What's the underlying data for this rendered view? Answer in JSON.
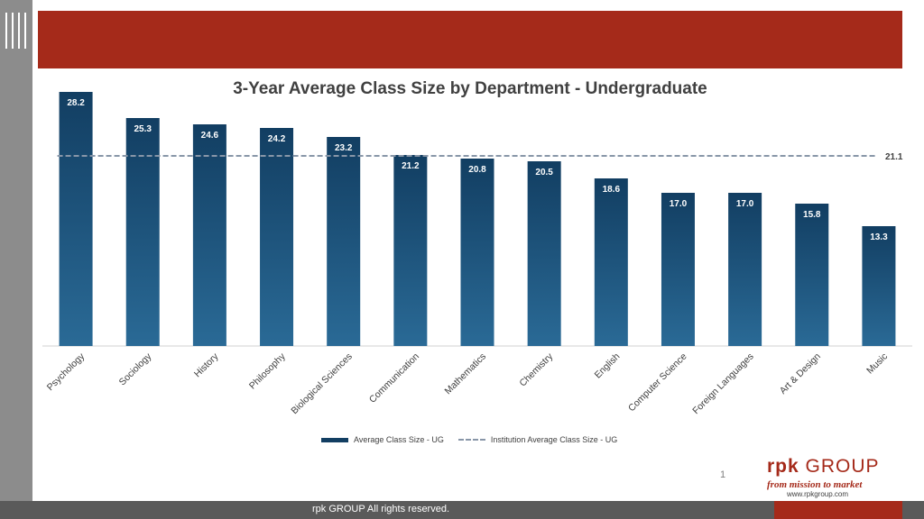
{
  "chart_data": {
    "type": "bar",
    "title": "3-Year Average Class Size by Department - Undergraduate",
    "categories": [
      "Psychology",
      "Sociology",
      "History",
      "Philosophy",
      "Biological Sciences",
      "Communication",
      "Mathematics",
      "Chemistry",
      "English",
      "Computer Science",
      "Foreign Languages",
      "Art & Design",
      "Music"
    ],
    "series": [
      {
        "name": "Average Class Size - UG",
        "values": [
          28.2,
          25.3,
          24.6,
          24.2,
          23.2,
          21.2,
          20.8,
          20.5,
          18.6,
          17.0,
          17.0,
          15.8,
          13.3
        ],
        "color": "#123e62"
      }
    ],
    "reference_line": {
      "name": "Institution Average Class Size - UG",
      "value": 21.1,
      "label": "21.1",
      "color": "#8896a8",
      "style": "dashed"
    },
    "ylim": [
      0,
      30
    ],
    "grid": false,
    "legend_position": "bottom",
    "xlabel": "",
    "ylabel": ""
  },
  "page": {
    "number": "1",
    "footer_text": "rpk GROUP  All rights reserved."
  },
  "logo": {
    "name_bold": "rpk",
    "name_rest": " GROUP",
    "tagline": "from mission to market",
    "url": "www.rpkgroup.com"
  },
  "colors": {
    "brand_red": "#a52a1a",
    "bar_blue": "#123e62",
    "side_gray": "#8c8c8c"
  }
}
